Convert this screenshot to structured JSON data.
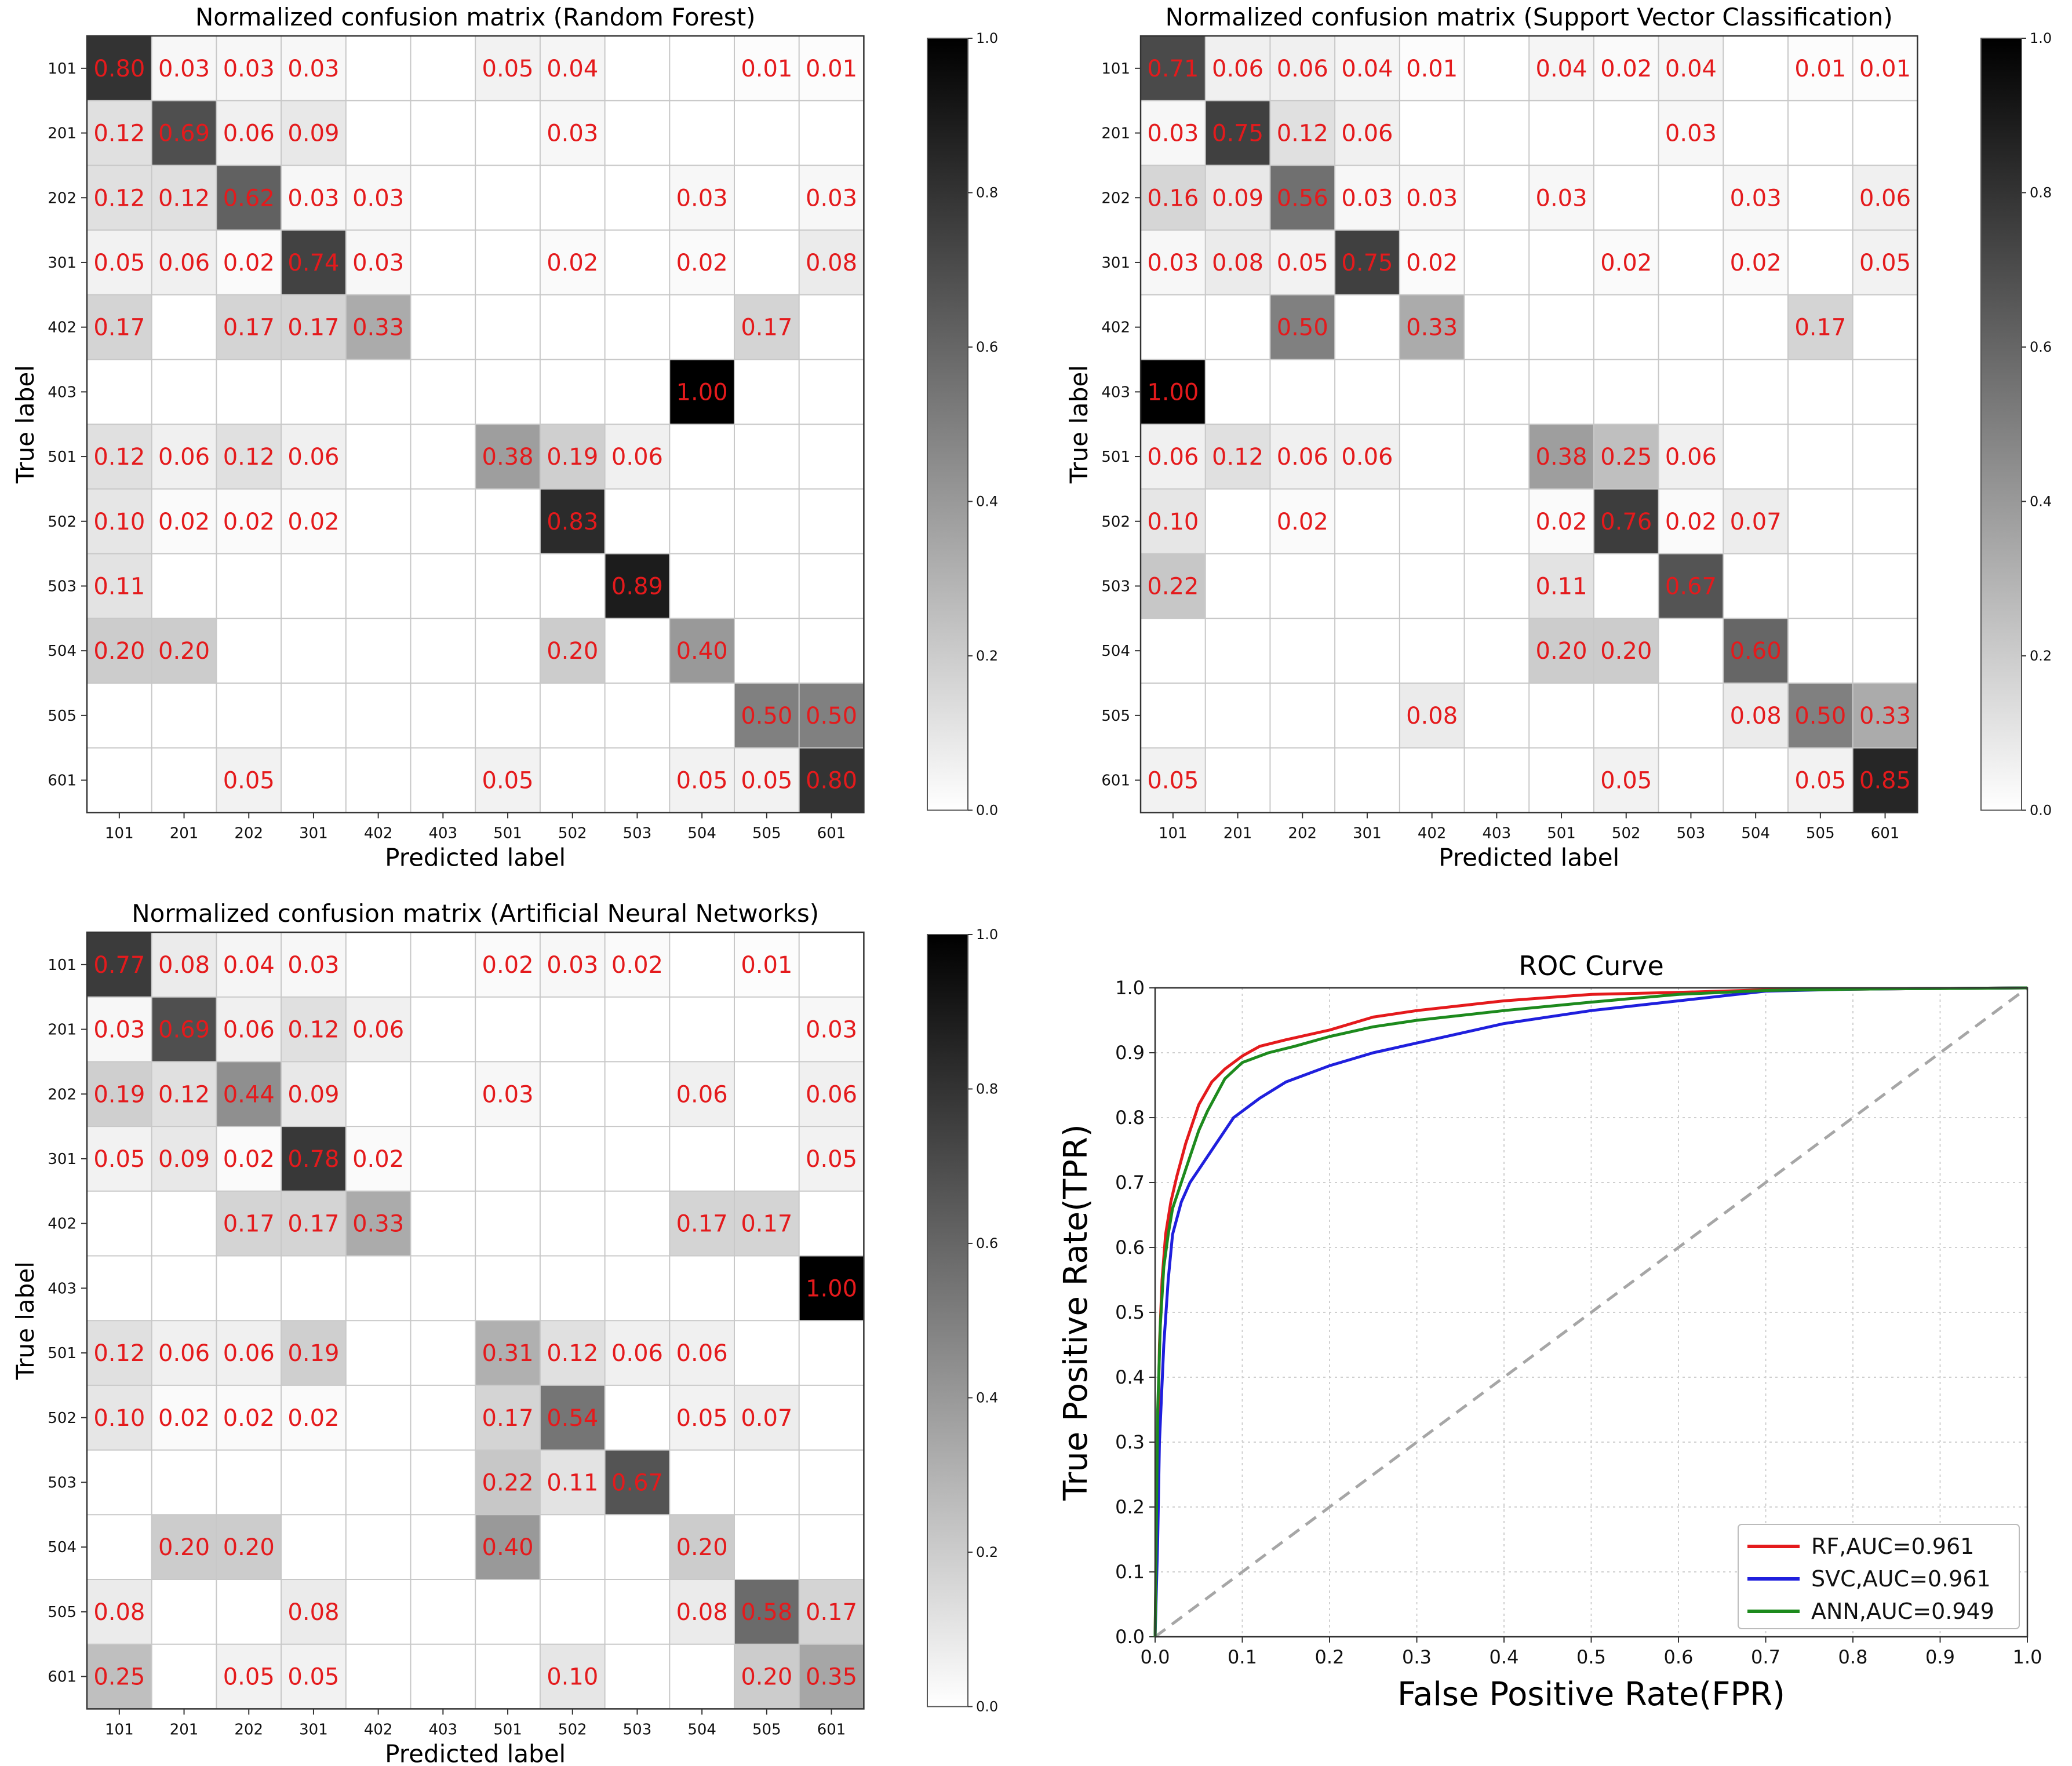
{
  "figure": {
    "panels": [
      "rf-confusion-matrix",
      "svc-confusion-matrix",
      "ann-confusion-matrix",
      "roc-curve"
    ]
  },
  "chart_data": [
    {
      "type": "heatmap",
      "id": "rf",
      "title": "Normalized confusion matrix (Random Forest)",
      "xlabel": "Predicted label",
      "ylabel": "True label",
      "labels": [
        "101",
        "201",
        "202",
        "301",
        "402",
        "403",
        "501",
        "502",
        "503",
        "504",
        "505",
        "601"
      ],
      "colorbar": {
        "min": 0.0,
        "max": 1.0,
        "ticks": [
          "0.0",
          "0.2",
          "0.4",
          "0.6",
          "0.8",
          "1.0"
        ]
      },
      "matrix": [
        [
          0.8,
          0.03,
          0.03,
          0.03,
          null,
          null,
          0.05,
          0.04,
          null,
          null,
          0.01,
          0.01
        ],
        [
          0.12,
          0.69,
          0.06,
          0.09,
          null,
          null,
          null,
          0.03,
          null,
          null,
          null,
          null
        ],
        [
          0.12,
          0.12,
          0.62,
          0.03,
          0.03,
          null,
          null,
          null,
          null,
          0.03,
          null,
          0.03
        ],
        [
          0.05,
          0.06,
          0.02,
          0.74,
          0.03,
          null,
          null,
          0.02,
          null,
          0.02,
          null,
          0.08
        ],
        [
          0.17,
          null,
          0.17,
          0.17,
          0.33,
          null,
          null,
          null,
          null,
          null,
          0.17,
          null
        ],
        [
          null,
          null,
          null,
          null,
          null,
          null,
          null,
          null,
          null,
          1.0,
          null,
          null
        ],
        [
          0.12,
          0.06,
          0.12,
          0.06,
          null,
          null,
          0.38,
          0.19,
          0.06,
          null,
          null,
          null
        ],
        [
          0.1,
          0.02,
          0.02,
          0.02,
          null,
          null,
          null,
          0.83,
          null,
          null,
          null,
          null
        ],
        [
          0.11,
          null,
          null,
          null,
          null,
          null,
          null,
          null,
          0.89,
          null,
          null,
          null
        ],
        [
          0.2,
          0.2,
          null,
          null,
          null,
          null,
          null,
          0.2,
          null,
          0.4,
          null,
          null
        ],
        [
          null,
          null,
          null,
          null,
          null,
          null,
          null,
          null,
          null,
          null,
          0.5,
          0.5
        ],
        [
          null,
          null,
          0.05,
          null,
          null,
          null,
          0.05,
          null,
          null,
          0.05,
          0.05,
          0.8
        ]
      ]
    },
    {
      "type": "heatmap",
      "id": "svc",
      "title": "Normalized confusion matrix (Support Vector Classification)",
      "xlabel": "Predicted label",
      "ylabel": "True label",
      "labels": [
        "101",
        "201",
        "202",
        "301",
        "402",
        "403",
        "501",
        "502",
        "503",
        "504",
        "505",
        "601"
      ],
      "colorbar": {
        "min": 0.0,
        "max": 1.0,
        "ticks": [
          "0.0",
          "0.2",
          "0.4",
          "0.6",
          "0.8",
          "1.0"
        ]
      },
      "matrix": [
        [
          0.71,
          0.06,
          0.06,
          0.04,
          0.01,
          null,
          0.04,
          0.02,
          0.04,
          null,
          0.01,
          0.01
        ],
        [
          0.03,
          0.75,
          0.12,
          0.06,
          null,
          null,
          null,
          null,
          0.03,
          null,
          null,
          null
        ],
        [
          0.16,
          0.09,
          0.56,
          0.03,
          0.03,
          null,
          0.03,
          null,
          null,
          0.03,
          null,
          0.06
        ],
        [
          0.03,
          0.08,
          0.05,
          0.75,
          0.02,
          null,
          null,
          0.02,
          null,
          0.02,
          null,
          0.05
        ],
        [
          null,
          null,
          0.5,
          null,
          0.33,
          null,
          null,
          null,
          null,
          null,
          0.17,
          null
        ],
        [
          1.0,
          null,
          null,
          null,
          null,
          null,
          null,
          null,
          null,
          null,
          null,
          null
        ],
        [
          0.06,
          0.12,
          0.06,
          0.06,
          null,
          null,
          0.38,
          0.25,
          0.06,
          null,
          null,
          null
        ],
        [
          0.1,
          null,
          0.02,
          null,
          null,
          null,
          0.02,
          0.76,
          0.02,
          0.07,
          null,
          null
        ],
        [
          0.22,
          null,
          null,
          null,
          null,
          null,
          0.11,
          null,
          0.67,
          null,
          null,
          null
        ],
        [
          null,
          null,
          null,
          null,
          null,
          null,
          0.2,
          0.2,
          null,
          0.6,
          null,
          null
        ],
        [
          null,
          null,
          null,
          null,
          0.08,
          null,
          null,
          null,
          null,
          0.08,
          0.5,
          0.33
        ],
        [
          0.05,
          null,
          null,
          null,
          null,
          null,
          null,
          0.05,
          null,
          null,
          0.05,
          0.85
        ]
      ]
    },
    {
      "type": "heatmap",
      "id": "ann",
      "title": "Normalized confusion matrix (Artificial Neural Networks)",
      "xlabel": "Predicted label",
      "ylabel": "True label",
      "labels": [
        "101",
        "201",
        "202",
        "301",
        "402",
        "403",
        "501",
        "502",
        "503",
        "504",
        "505",
        "601"
      ],
      "colorbar": {
        "min": 0.0,
        "max": 1.0,
        "ticks": [
          "0.0",
          "0.2",
          "0.4",
          "0.6",
          "0.8",
          "1.0"
        ]
      },
      "matrix": [
        [
          0.77,
          0.08,
          0.04,
          0.03,
          null,
          null,
          0.02,
          0.03,
          0.02,
          null,
          0.01,
          null
        ],
        [
          0.03,
          0.69,
          0.06,
          0.12,
          0.06,
          null,
          null,
          null,
          null,
          null,
          null,
          0.03
        ],
        [
          0.19,
          0.12,
          0.44,
          0.09,
          null,
          null,
          0.03,
          null,
          null,
          0.06,
          null,
          0.06
        ],
        [
          0.05,
          0.09,
          0.02,
          0.78,
          0.02,
          null,
          null,
          null,
          null,
          null,
          null,
          0.05
        ],
        [
          null,
          null,
          0.17,
          0.17,
          0.33,
          null,
          null,
          null,
          null,
          0.17,
          0.17,
          null
        ],
        [
          null,
          null,
          null,
          null,
          null,
          null,
          null,
          null,
          null,
          null,
          null,
          1.0
        ],
        [
          0.12,
          0.06,
          0.06,
          0.19,
          null,
          null,
          0.31,
          0.12,
          0.06,
          0.06,
          null,
          null
        ],
        [
          0.1,
          0.02,
          0.02,
          0.02,
          null,
          null,
          0.17,
          0.54,
          null,
          0.05,
          0.07,
          null
        ],
        [
          null,
          null,
          null,
          null,
          null,
          null,
          0.22,
          0.11,
          0.67,
          null,
          null,
          null
        ],
        [
          null,
          0.2,
          0.2,
          null,
          null,
          null,
          0.4,
          null,
          null,
          0.2,
          null,
          null
        ],
        [
          0.08,
          null,
          null,
          0.08,
          null,
          null,
          null,
          null,
          null,
          0.08,
          0.58,
          0.17
        ],
        [
          0.25,
          null,
          0.05,
          0.05,
          null,
          null,
          null,
          0.1,
          null,
          null,
          0.2,
          0.35
        ]
      ]
    },
    {
      "type": "line",
      "id": "roc",
      "title": "ROC Curve",
      "xlabel": "False Positive Rate(FPR)",
      "ylabel": "True Positive Rate(TPR)",
      "xlim": [
        0.0,
        1.0
      ],
      "ylim": [
        0.0,
        1.0
      ],
      "xticks": [
        "0.0",
        "0.1",
        "0.2",
        "0.3",
        "0.4",
        "0.5",
        "0.6",
        "0.7",
        "0.8",
        "0.9",
        "1.0"
      ],
      "yticks": [
        "0.0",
        "0.1",
        "0.2",
        "0.3",
        "0.4",
        "0.5",
        "0.6",
        "0.7",
        "0.8",
        "0.9",
        "1.0"
      ],
      "grid": true,
      "legend_position": "bottom-right",
      "series": [
        {
          "name": "RF,AUC=0.961",
          "color": "#e41a1c",
          "x": [
            0,
            0.003,
            0.005,
            0.008,
            0.012,
            0.018,
            0.025,
            0.035,
            0.05,
            0.065,
            0.08,
            0.1,
            0.12,
            0.15,
            0.2,
            0.25,
            0.3,
            0.4,
            0.5,
            0.6,
            0.7,
            0.8,
            0.9,
            1.0
          ],
          "y": [
            0,
            0.3,
            0.45,
            0.55,
            0.62,
            0.67,
            0.71,
            0.76,
            0.82,
            0.855,
            0.875,
            0.895,
            0.91,
            0.92,
            0.935,
            0.955,
            0.965,
            0.98,
            0.99,
            0.993,
            0.997,
            0.998,
            0.999,
            1.0
          ]
        },
        {
          "name": "SVC,AUC=0.961",
          "color": "#1f1fdd",
          "x": [
            0,
            0.003,
            0.005,
            0.01,
            0.015,
            0.02,
            0.03,
            0.04,
            0.05,
            0.07,
            0.09,
            0.12,
            0.15,
            0.2,
            0.25,
            0.3,
            0.35,
            0.4,
            0.5,
            0.6,
            0.7,
            0.8,
            0.9,
            1.0
          ],
          "y": [
            0,
            0.15,
            0.3,
            0.45,
            0.55,
            0.62,
            0.67,
            0.7,
            0.72,
            0.76,
            0.8,
            0.83,
            0.855,
            0.88,
            0.9,
            0.915,
            0.93,
            0.945,
            0.965,
            0.98,
            0.995,
            0.998,
            0.999,
            1.0
          ]
        },
        {
          "name": "ANN,AUC=0.949",
          "color": "#1d8a1d",
          "x": [
            0,
            0.003,
            0.006,
            0.01,
            0.015,
            0.02,
            0.03,
            0.04,
            0.05,
            0.06,
            0.08,
            0.1,
            0.13,
            0.16,
            0.2,
            0.25,
            0.3,
            0.4,
            0.5,
            0.6,
            0.7,
            0.8,
            0.9,
            1.0
          ],
          "y": [
            0,
            0.35,
            0.48,
            0.57,
            0.62,
            0.66,
            0.7,
            0.74,
            0.78,
            0.81,
            0.86,
            0.885,
            0.9,
            0.91,
            0.925,
            0.94,
            0.95,
            0.965,
            0.978,
            0.99,
            0.996,
            0.998,
            0.999,
            1.0
          ]
        }
      ],
      "reference_line": {
        "x": [
          0,
          1
        ],
        "y": [
          0,
          1
        ],
        "color": "#a6a6a6",
        "style": "dashed"
      }
    }
  ]
}
